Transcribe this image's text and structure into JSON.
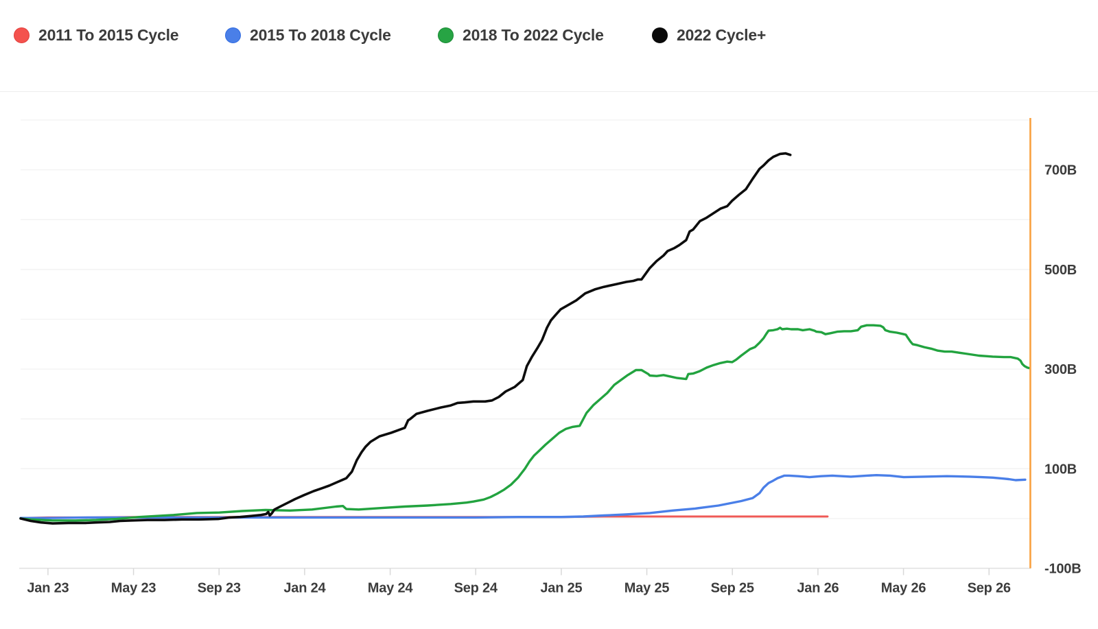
{
  "legend": {
    "items": [
      {
        "label": "2011 To 2015 Cycle",
        "color": "#f4524e",
        "stroke": "#e23f3c"
      },
      {
        "label": "2015 To 2018 Cycle",
        "color": "#4a7fe8",
        "stroke": "#2f6ae0"
      },
      {
        "label": "2018 To 2022 Cycle",
        "color": "#27a444",
        "stroke": "#188a33"
      },
      {
        "label": "2022 Cycle+",
        "color": "#0a0a0a",
        "stroke": "#0a0a0a"
      }
    ]
  },
  "chart_data": {
    "type": "line",
    "title": "",
    "unit": "B",
    "grid_on": true,
    "legend_position": "top",
    "x_axis": {
      "tick_labels": [
        "Jan 23",
        "May 23",
        "Sep 23",
        "Jan 24",
        "May 24",
        "Sep 24",
        "Jan 25",
        "May 25",
        "Sep 25",
        "Jan 26",
        "May 26",
        "Sep 26"
      ],
      "tick_months": [
        0,
        4,
        8,
        12,
        16,
        20,
        24,
        28,
        32,
        36,
        40,
        44
      ]
    },
    "y_axis": {
      "tick_labels": [
        "700B",
        "500B",
        "300B",
        "100B",
        "-100B"
      ],
      "tick_values": [
        700,
        500,
        300,
        100,
        -100
      ],
      "grid_values": [
        800,
        700,
        600,
        500,
        400,
        300,
        200,
        100,
        0
      ],
      "side": "right"
    },
    "ylim": [
      -100,
      800
    ],
    "xlim_months": [
      -1.28,
      45.95
    ],
    "marker_line": {
      "name": "right-edge-marker",
      "color": "#f9a03f",
      "position_month": 45.93
    },
    "colors": {
      "grid": "#f2f2f2",
      "axis": "#e0e0e0",
      "tick": "#d8d8d8",
      "label": "#3c3c3c"
    },
    "series": [
      {
        "name": "2011 To 2015 Cycle",
        "color": "#ef5956",
        "width": 3,
        "points": [
          [
            -1.28,
            1
          ],
          [
            0,
            2
          ],
          [
            2,
            2
          ],
          [
            4,
            3
          ],
          [
            6,
            3
          ],
          [
            8,
            3
          ],
          [
            10,
            3
          ],
          [
            12,
            3
          ],
          [
            14,
            3
          ],
          [
            16,
            3
          ],
          [
            18,
            3
          ],
          [
            20,
            3
          ],
          [
            22,
            3
          ],
          [
            24,
            3
          ],
          [
            26,
            4
          ],
          [
            28,
            4
          ],
          [
            30,
            4
          ],
          [
            32,
            4
          ],
          [
            34,
            4
          ],
          [
            36.45,
            4
          ]
        ]
      },
      {
        "name": "2015 To 2018 Cycle",
        "color": "#4a7fe8",
        "width": 3.4,
        "points": [
          [
            -1.28,
            1
          ],
          [
            0,
            1
          ],
          [
            2,
            2
          ],
          [
            4,
            2
          ],
          [
            6,
            2
          ],
          [
            8,
            2
          ],
          [
            10,
            2
          ],
          [
            12,
            2
          ],
          [
            14,
            2
          ],
          [
            16,
            2
          ],
          [
            18,
            2
          ],
          [
            20,
            2
          ],
          [
            22,
            3
          ],
          [
            24,
            3
          ],
          [
            25.03,
            4
          ],
          [
            25.99,
            6
          ],
          [
            26.95,
            8
          ],
          [
            28.14,
            11
          ],
          [
            29.2,
            16
          ],
          [
            30.26,
            20
          ],
          [
            31.35,
            26
          ],
          [
            32.41,
            35
          ],
          [
            32.95,
            41
          ],
          [
            33.27,
            51
          ],
          [
            33.46,
            62
          ],
          [
            33.69,
            71
          ],
          [
            33.91,
            76
          ],
          [
            34.11,
            81
          ],
          [
            34.43,
            86
          ],
          [
            34.65,
            86
          ],
          [
            35.07,
            85
          ],
          [
            35.61,
            83
          ],
          [
            36.16,
            85
          ],
          [
            36.67,
            86
          ],
          [
            37.54,
            84
          ],
          [
            38.28,
            86
          ],
          [
            38.73,
            87
          ],
          [
            39.37,
            86
          ],
          [
            40.01,
            83
          ],
          [
            40.97,
            84
          ],
          [
            42.03,
            85
          ],
          [
            43.09,
            84
          ],
          [
            43.63,
            83
          ],
          [
            44.17,
            82
          ],
          [
            44.7,
            80
          ],
          [
            44.92,
            79
          ],
          [
            45.24,
            77
          ],
          [
            45.69,
            78
          ]
        ]
      },
      {
        "name": "2018 To 2022 Cycle",
        "color": "#22a33f",
        "width": 3.4,
        "points": [
          [
            -1.28,
            0
          ],
          [
            -0.8,
            -2
          ],
          [
            0.22,
            -4
          ],
          [
            1.28,
            -4
          ],
          [
            2.25,
            -3
          ],
          [
            3.21,
            -1
          ],
          [
            4.27,
            3
          ],
          [
            5.87,
            7
          ],
          [
            6.96,
            11
          ],
          [
            8.02,
            12
          ],
          [
            9.08,
            15
          ],
          [
            10.17,
            17
          ],
          [
            11.32,
            16
          ],
          [
            12.35,
            18
          ],
          [
            13.47,
            24
          ],
          [
            13.79,
            25
          ],
          [
            13.95,
            19
          ],
          [
            14.53,
            18
          ],
          [
            15.62,
            21
          ],
          [
            16.68,
            24
          ],
          [
            17.74,
            26
          ],
          [
            18.83,
            29
          ],
          [
            19.57,
            32
          ],
          [
            19.89,
            34
          ],
          [
            20.37,
            38
          ],
          [
            20.69,
            43
          ],
          [
            21.01,
            50
          ],
          [
            21.33,
            58
          ],
          [
            21.65,
            68
          ],
          [
            21.98,
            82
          ],
          [
            22.3,
            100
          ],
          [
            22.52,
            115
          ],
          [
            22.72,
            126
          ],
          [
            22.94,
            135
          ],
          [
            23.26,
            148
          ],
          [
            23.58,
            160
          ],
          [
            23.9,
            172
          ],
          [
            24.22,
            180
          ],
          [
            24.54,
            184
          ],
          [
            24.86,
            186
          ],
          [
            25.18,
            212
          ],
          [
            25.51,
            228
          ],
          [
            25.83,
            240
          ],
          [
            26.15,
            252
          ],
          [
            26.47,
            268
          ],
          [
            26.79,
            278
          ],
          [
            27.11,
            288
          ],
          [
            27.49,
            298
          ],
          [
            27.75,
            298
          ],
          [
            28.07,
            290
          ],
          [
            28.14,
            287
          ],
          [
            28.46,
            286
          ],
          [
            28.78,
            288
          ],
          [
            29.1,
            285
          ],
          [
            29.42,
            282
          ],
          [
            29.84,
            280
          ],
          [
            29.94,
            290
          ],
          [
            30.16,
            291
          ],
          [
            30.48,
            296
          ],
          [
            30.8,
            303
          ],
          [
            31.12,
            308
          ],
          [
            31.44,
            312
          ],
          [
            31.76,
            315
          ],
          [
            31.99,
            314
          ],
          [
            32.18,
            319
          ],
          [
            32.41,
            327
          ],
          [
            32.63,
            334
          ],
          [
            32.82,
            340
          ],
          [
            33.05,
            344
          ],
          [
            33.27,
            353
          ],
          [
            33.46,
            362
          ],
          [
            33.59,
            371
          ],
          [
            33.69,
            377
          ],
          [
            33.91,
            378
          ],
          [
            34.11,
            380
          ],
          [
            34.23,
            383
          ],
          [
            34.33,
            380
          ],
          [
            34.55,
            381
          ],
          [
            34.75,
            380
          ],
          [
            35.07,
            380
          ],
          [
            35.29,
            378
          ],
          [
            35.61,
            380
          ],
          [
            35.84,
            377
          ],
          [
            35.93,
            375
          ],
          [
            36.16,
            374
          ],
          [
            36.35,
            370
          ],
          [
            36.58,
            372
          ],
          [
            36.9,
            375
          ],
          [
            37.22,
            376
          ],
          [
            37.54,
            376
          ],
          [
            37.86,
            378
          ],
          [
            38.02,
            385
          ],
          [
            38.28,
            388
          ],
          [
            38.6,
            388
          ],
          [
            38.92,
            387
          ],
          [
            39.05,
            384
          ],
          [
            39.15,
            378
          ],
          [
            39.37,
            375
          ],
          [
            39.69,
            373
          ],
          [
            40.01,
            370
          ],
          [
            40.11,
            369
          ],
          [
            40.2,
            363
          ],
          [
            40.33,
            355
          ],
          [
            40.43,
            350
          ],
          [
            40.65,
            348
          ],
          [
            40.97,
            344
          ],
          [
            41.29,
            341
          ],
          [
            41.61,
            337
          ],
          [
            41.93,
            335
          ],
          [
            42.25,
            335
          ],
          [
            42.57,
            333
          ],
          [
            42.89,
            331
          ],
          [
            43.21,
            329
          ],
          [
            43.53,
            327
          ],
          [
            43.85,
            326
          ],
          [
            44.17,
            325
          ],
          [
            44.7,
            324
          ],
          [
            45.02,
            324
          ],
          [
            45.34,
            321
          ],
          [
            45.47,
            317
          ],
          [
            45.56,
            310
          ],
          [
            45.66,
            306
          ],
          [
            45.79,
            303
          ],
          [
            45.88,
            302
          ]
        ]
      },
      {
        "name": "2022 Cycle+",
        "color": "#0d0d0d",
        "width": 3.6,
        "points": [
          [
            -1.28,
            0
          ],
          [
            -0.8,
            -5
          ],
          [
            -0.32,
            -8
          ],
          [
            0.22,
            -10
          ],
          [
            0.96,
            -9
          ],
          [
            1.76,
            -9
          ],
          [
            2.25,
            -8
          ],
          [
            2.89,
            -7
          ],
          [
            3.37,
            -5
          ],
          [
            3.91,
            -4
          ],
          [
            4.65,
            -3
          ],
          [
            5.45,
            -3
          ],
          [
            6.26,
            -2
          ],
          [
            7.06,
            -2
          ],
          [
            7.96,
            -1
          ],
          [
            8.5,
            2
          ],
          [
            8.98,
            3
          ],
          [
            9.47,
            5
          ],
          [
            9.95,
            7
          ],
          [
            10.2,
            9
          ],
          [
            10.3,
            13
          ],
          [
            10.37,
            6
          ],
          [
            10.46,
            10
          ],
          [
            10.59,
            18
          ],
          [
            10.91,
            25
          ],
          [
            11.23,
            32
          ],
          [
            11.55,
            39
          ],
          [
            11.97,
            47
          ],
          [
            12.42,
            55
          ],
          [
            12.83,
            61
          ],
          [
            13.15,
            66
          ],
          [
            13.47,
            72
          ],
          [
            13.79,
            78
          ],
          [
            13.95,
            81
          ],
          [
            14.21,
            94
          ],
          [
            14.44,
            117
          ],
          [
            14.66,
            133
          ],
          [
            14.85,
            144
          ],
          [
            15.08,
            154
          ],
          [
            15.5,
            165
          ],
          [
            16.04,
            172
          ],
          [
            16.68,
            182
          ],
          [
            16.84,
            197
          ],
          [
            16.94,
            200
          ],
          [
            17.23,
            210
          ],
          [
            17.74,
            216
          ],
          [
            18.38,
            223
          ],
          [
            18.83,
            227
          ],
          [
            19.02,
            230
          ],
          [
            19.15,
            232
          ],
          [
            19.47,
            233
          ],
          [
            19.89,
            235
          ],
          [
            20.44,
            235
          ],
          [
            20.76,
            237
          ],
          [
            21.08,
            244
          ],
          [
            21.4,
            255
          ],
          [
            21.82,
            264
          ],
          [
            22.2,
            278
          ],
          [
            22.39,
            306
          ],
          [
            22.62,
            324
          ],
          [
            22.88,
            342
          ],
          [
            23.1,
            358
          ],
          [
            23.33,
            383
          ],
          [
            23.52,
            398
          ],
          [
            23.74,
            409
          ],
          [
            23.97,
            420
          ],
          [
            24.38,
            430
          ],
          [
            24.7,
            438
          ],
          [
            25.12,
            452
          ],
          [
            25.57,
            460
          ],
          [
            25.99,
            465
          ],
          [
            26.63,
            471
          ],
          [
            27.04,
            475
          ],
          [
            27.37,
            477
          ],
          [
            27.59,
            480
          ],
          [
            27.75,
            480
          ],
          [
            28.14,
            503
          ],
          [
            28.46,
            517
          ],
          [
            28.78,
            528
          ],
          [
            28.97,
            537
          ],
          [
            29.29,
            543
          ],
          [
            29.52,
            549
          ],
          [
            29.84,
            559
          ],
          [
            30,
            576
          ],
          [
            30.16,
            580
          ],
          [
            30.48,
            597
          ],
          [
            30.8,
            604
          ],
          [
            31.12,
            613
          ],
          [
            31.44,
            622
          ],
          [
            31.76,
            627
          ],
          [
            31.99,
            638
          ],
          [
            32.31,
            650
          ],
          [
            32.63,
            661
          ],
          [
            32.95,
            682
          ],
          [
            33.27,
            702
          ],
          [
            33.46,
            709
          ],
          [
            33.69,
            719
          ],
          [
            33.91,
            726
          ],
          [
            34.23,
            732
          ],
          [
            34.49,
            733
          ],
          [
            34.71,
            730
          ]
        ]
      }
    ]
  }
}
